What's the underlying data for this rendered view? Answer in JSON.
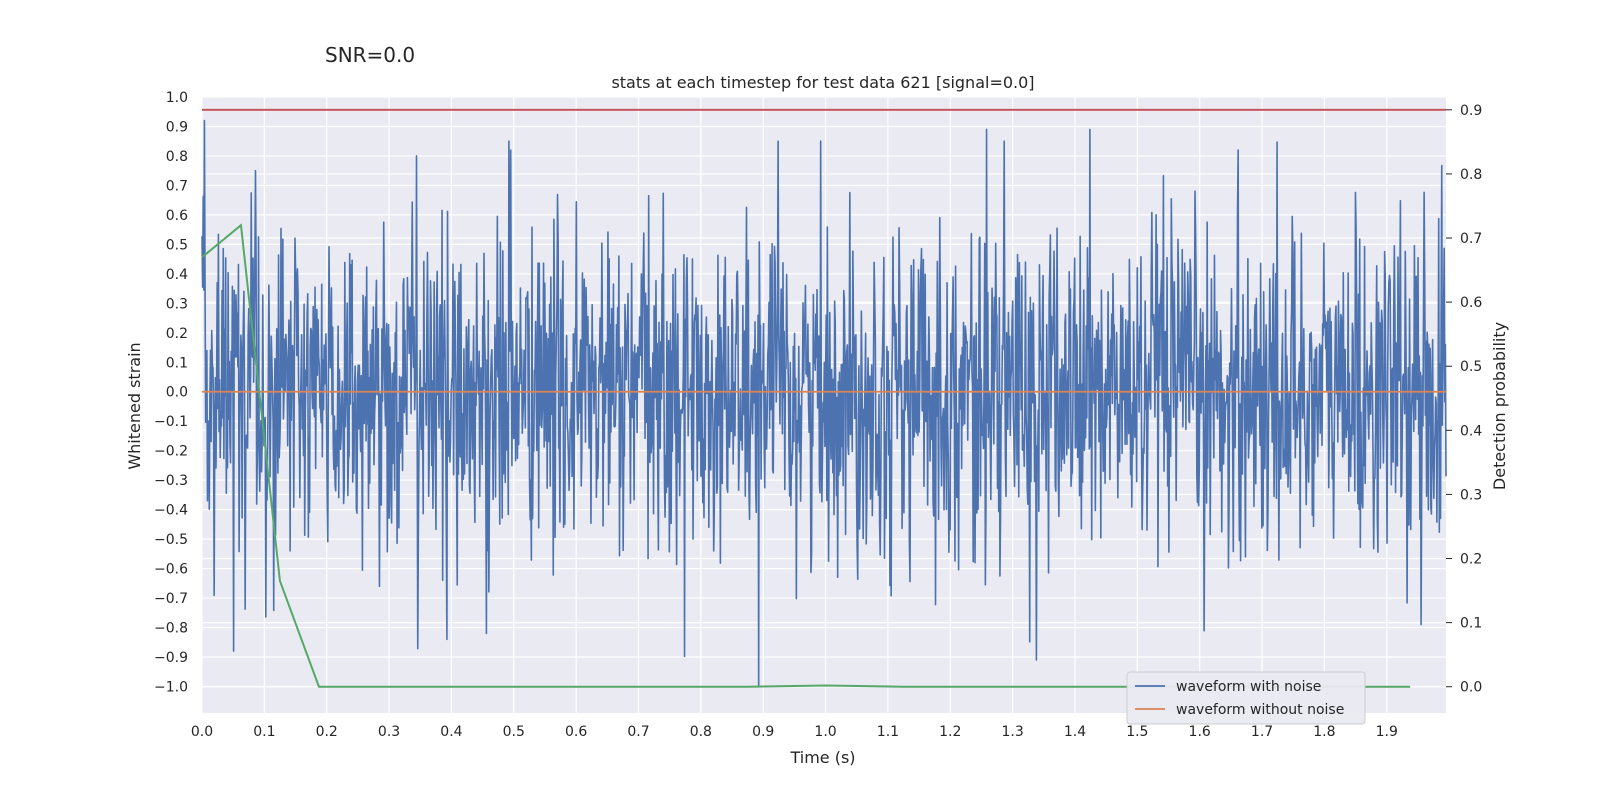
{
  "chart_data": {
    "type": "line",
    "suptitle": "SNR=0.0",
    "title": "stats at each timestep for test data 621 [signal=0.0]",
    "xlabel": "Time (s)",
    "ylabel": "Whitened strain",
    "y2label": "Detection probability",
    "xlim": [
      0.0,
      1.995
    ],
    "ylim": [
      -1.09,
      1.0
    ],
    "y2lim": [
      -0.041,
      0.92
    ],
    "xticks": [
      "0.0",
      "0.1",
      "0.2",
      "0.3",
      "0.4",
      "0.5",
      "0.6",
      "0.7",
      "0.8",
      "0.9",
      "1.0",
      "1.1",
      "1.2",
      "1.3",
      "1.4",
      "1.5",
      "1.6",
      "1.7",
      "1.8",
      "1.9"
    ],
    "yticks": [
      "1.0",
      "0.9",
      "0.8",
      "0.7",
      "0.6",
      "0.5",
      "0.4",
      "0.3",
      "0.2",
      "0.1",
      "0.0",
      "−0.1",
      "−0.2",
      "−0.3",
      "−0.4",
      "−0.5",
      "−0.6",
      "−0.7",
      "−0.8",
      "−0.9",
      "−1.0"
    ],
    "y2ticks": [
      "0.9",
      "0.8",
      "0.7",
      "0.6",
      "0.5",
      "0.4",
      "0.3",
      "0.2",
      "0.1",
      "0.0"
    ],
    "grid": true,
    "legend_position": "lower-right",
    "colors": {
      "background": "#eaeaf2",
      "grid": "#ffffff",
      "noise": "#4c72b0",
      "clean": "#dd8452",
      "prob": "#55a868",
      "threshold": "#c44e52"
    },
    "series": [
      {
        "name": "waveform with noise",
        "kind": "noise",
        "n_points": 2048,
        "x_range": [
          0.0,
          1.995
        ],
        "amplitude_std": 0.27,
        "notable_peaks": [
          {
            "x": 0.004,
            "y": 0.92
          },
          {
            "x": 0.051,
            "y": -0.88
          },
          {
            "x": 0.086,
            "y": 0.75
          },
          {
            "x": 0.344,
            "y": 0.8
          },
          {
            "x": 0.393,
            "y": -0.84
          },
          {
            "x": 0.456,
            "y": -0.82
          },
          {
            "x": 0.495,
            "y": 0.82
          },
          {
            "x": 0.893,
            "y": -1.0
          },
          {
            "x": 1.258,
            "y": 0.89
          },
          {
            "x": 1.338,
            "y": -0.91
          },
          {
            "x": 1.424,
            "y": 0.89
          },
          {
            "x": 1.662,
            "y": 0.82
          },
          {
            "x": 1.955,
            "y": -0.79
          }
        ]
      },
      {
        "name": "waveform without noise",
        "kind": "clean",
        "x": [
          0.0,
          1.995
        ],
        "y": [
          0.0,
          0.0
        ]
      },
      {
        "name": "Detection probability",
        "kind": "prob",
        "axis": "right",
        "x": [
          0.0,
          0.0625,
          0.125,
          0.1875,
          0.25,
          0.5,
          0.75,
          0.875,
          1.0,
          1.125,
          1.25,
          1.5,
          1.75,
          1.9375
        ],
        "y": [
          0.67,
          0.72,
          0.165,
          0.0,
          0.0,
          0.0,
          0.0,
          0.0,
          0.002,
          0.0,
          0.0,
          0.0,
          0.0,
          0.0
        ]
      },
      {
        "name": "threshold",
        "kind": "threshold",
        "axis": "right",
        "x": [
          0.0,
          1.995
        ],
        "y": [
          0.9,
          0.9
        ]
      }
    ],
    "legend": [
      "waveform with noise",
      "waveform without noise"
    ]
  }
}
